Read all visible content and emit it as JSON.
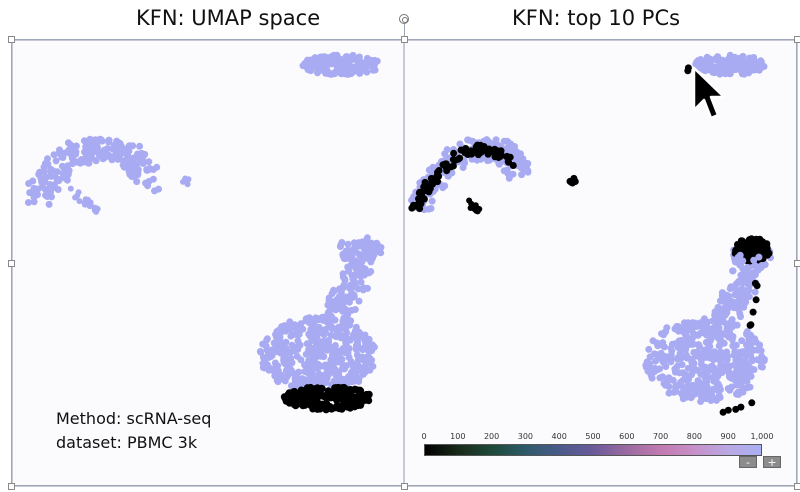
{
  "titles": {
    "left": "KFN: UMAP space",
    "right": "KFN: top 10 PCs"
  },
  "caption": {
    "method": "Method: scRNA-seq",
    "dataset": "dataset: PBMC 3k"
  },
  "colorbar": {
    "ticks": [
      "0",
      "100",
      "200",
      "300",
      "400",
      "500",
      "600",
      "700",
      "800",
      "900",
      "1,000"
    ]
  },
  "zoom": {
    "minus": "-",
    "plus": "+"
  },
  "colors": {
    "base_points": "#a9abf2",
    "highlight_points": "#000000",
    "panel_bg": "#fbfbfe"
  }
}
